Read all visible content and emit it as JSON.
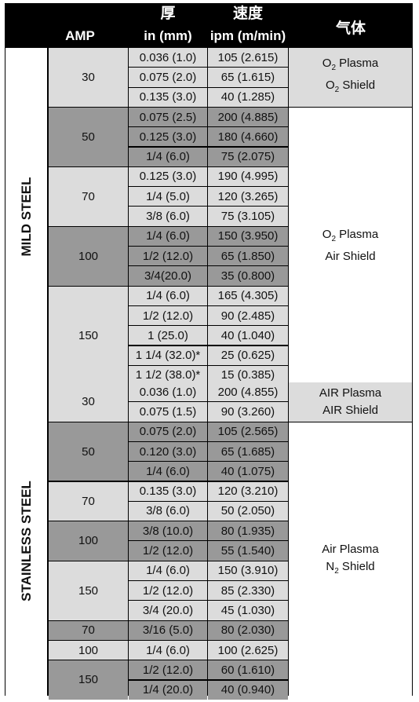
{
  "header": {
    "amp": "AMP",
    "thickness_cn": "厚",
    "thickness_unit": "in (mm)",
    "speed_cn": "速度",
    "speed_unit": "ipm (m/min)",
    "gas": "气体"
  },
  "colors": {
    "light": "#dcdcdc",
    "dark": "#999999",
    "white": "#ffffff",
    "header": "#000000"
  },
  "sections": [
    {
      "material": "MILD STEEL",
      "rows": [
        {
          "t": "0.036 (1.0)",
          "s": "105 (2.615)"
        },
        {
          "t": "0.075 (2.0)",
          "s": "65 (1.615)"
        },
        {
          "t": "0.135 (3.0)",
          "s": "40 (1.285)"
        },
        {
          "t": "0.075 (2.5)",
          "s": "200 (4.885)"
        },
        {
          "t": "0.125 (3.0)",
          "s": "180 (4.660)"
        },
        {
          "t": "1/4 (6.0)",
          "s": "75 (2.075)"
        },
        {
          "t": "0.125 (3.0)",
          "s": "190 (4.995)"
        },
        {
          "t": "1/4 (5.0)",
          "s": "120 (3.265)"
        },
        {
          "t": "3/8 (6.0)",
          "s": "75 (3.105)"
        },
        {
          "t": "1/4 (6.0)",
          "s": "150 (3.950)"
        },
        {
          "t": "1/2 (12.0)",
          "s": "65 (1.850)"
        },
        {
          "t": "3/4(20.0)",
          "s": "35 (0.800)"
        },
        {
          "t": "1/4 (6.0)",
          "s": "165 (4.305)"
        },
        {
          "t": "1/2 (12.0)",
          "s": "90 (2.485)"
        },
        {
          "t": "1 (25.0)",
          "s": "40 (1.040)"
        },
        {
          "t": "1 1/4 (32.0)*",
          "s": "25 (0.625)"
        },
        {
          "t": "1 1/2 (38.0)*",
          "s": "15 (0.385)"
        }
      ],
      "amps": [
        {
          "label": "30",
          "start": 0,
          "span": 3,
          "shade": "light"
        },
        {
          "label": "50",
          "start": 3,
          "span": 3,
          "shade": "dark"
        },
        {
          "label": "70",
          "start": 6,
          "span": 3,
          "shade": "light"
        },
        {
          "label": "100",
          "start": 9,
          "span": 3,
          "shade": "dark"
        },
        {
          "label": "150",
          "start": 12,
          "span": 5,
          "shade": "light"
        }
      ],
      "gases": [
        {
          "line1": "O",
          "sub1": "2",
          "rest1": " Plasma",
          "line2": "O",
          "sub2": "2",
          "rest2": " Shield",
          "start": 0,
          "span": 3,
          "shade": "light"
        },
        {
          "line1": "O",
          "sub1": "2",
          "rest1": " Plasma",
          "line2": "Air Shield",
          "sub2": "",
          "rest2": "",
          "start": 3,
          "span": 14,
          "shade": "white"
        }
      ]
    },
    {
      "material": "STAINLESS STEEL",
      "rows": [
        {
          "t": "0.036 (1.0)",
          "s": "200 (4.855)"
        },
        {
          "t": "0.075 (1.5)",
          "s": "90 (3.260)"
        },
        {
          "t": "0.075 (2.0)",
          "s": "105 (2.565)"
        },
        {
          "t": "0.120 (3.0)",
          "s": "65 (1.685)"
        },
        {
          "t": "1/4 (6.0)",
          "s": "40 (1.075)"
        },
        {
          "t": "0.135 (3.0)",
          "s": "120 (3.210)"
        },
        {
          "t": "3/8 (6.0)",
          "s": "50 (2.050)"
        },
        {
          "t": "3/8 (10.0)",
          "s": "80 (1.935)"
        },
        {
          "t": "1/2 (12.0)",
          "s": "55 (1.540)"
        },
        {
          "t": "1/4 (6.0)",
          "s": "150 (3.910)"
        },
        {
          "t": "1/2 (12.0)",
          "s": "85 (2.330)"
        },
        {
          "t": "3/4 (20.0)",
          "s": "45 (1.030)"
        },
        {
          "t": "3/16 (5.0)",
          "s": "80 (2.030)"
        },
        {
          "t": "1/4 (6.0)",
          "s": "100 (2.625)"
        },
        {
          "t": "1/2 (12.0)",
          "s": "60 (1.610)"
        },
        {
          "t": "1/4 (20.0)",
          "s": "40 (0.940)"
        }
      ],
      "amps": [
        {
          "label": "30",
          "start": 0,
          "span": 2,
          "shade": "light"
        },
        {
          "label": "50",
          "start": 2,
          "span": 3,
          "shade": "dark"
        },
        {
          "label": "70",
          "start": 5,
          "span": 2,
          "shade": "light"
        },
        {
          "label": "100",
          "start": 7,
          "span": 2,
          "shade": "dark"
        },
        {
          "label": "150",
          "start": 9,
          "span": 3,
          "shade": "light"
        },
        {
          "label": "70",
          "start": 12,
          "span": 1,
          "shade": "dark"
        },
        {
          "label": "100",
          "start": 13,
          "span": 1,
          "shade": "light"
        },
        {
          "label": "150",
          "start": 14,
          "span": 2,
          "shade": "dark"
        }
      ],
      "gases": [
        {
          "line1": "AIR Plasma",
          "sub1": "",
          "rest1": "",
          "line2": "AIR Shield",
          "sub2": "",
          "rest2": "",
          "start": 0,
          "span": 2,
          "shade": "light"
        },
        {
          "line1": "Air Plasma",
          "sub1": "",
          "rest1": "",
          "line2": "N",
          "sub2": "2",
          "rest2": " Shield",
          "start": 2,
          "span": 14,
          "shade": "white"
        }
      ]
    }
  ]
}
